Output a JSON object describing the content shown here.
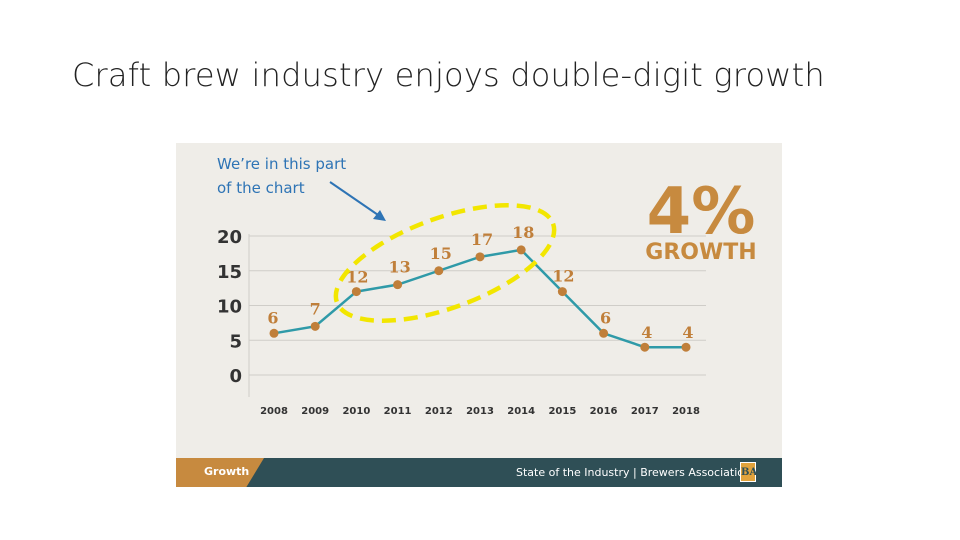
{
  "slide": {
    "title": "Craft brew industry enjoys double-digit growth",
    "annotation_line1": "We’re in this part",
    "annotation_line2": "of the chart"
  },
  "badge": {
    "big": "4%",
    "label": "GROWTH"
  },
  "footer": {
    "left_label": "Growth",
    "right_label": "State of the Industry | Brewers Association",
    "logo_text": "BA"
  },
  "colors": {
    "line": "#2f9aa8",
    "marker": "#c07f3a",
    "value_label": "#c07f3a",
    "badge": "#c78a3f",
    "highlight": "#f2e600",
    "annotation": "#2e74b5",
    "panel_bg": "#efede8",
    "footer_bg": "#2f4f56"
  },
  "chart_data": {
    "type": "line",
    "title": "",
    "xlabel": "",
    "ylabel": "",
    "categories": [
      "2008",
      "2009",
      "2010",
      "2011",
      "2012",
      "2013",
      "2014",
      "2015",
      "2016",
      "2017",
      "2018"
    ],
    "values": [
      6,
      7,
      12,
      13,
      15,
      17,
      18,
      12,
      6,
      4,
      4
    ],
    "ylim": [
      0,
      20
    ],
    "yticks": [
      "0",
      "5",
      "10",
      "15",
      "20"
    ],
    "grid": true,
    "legend": "none",
    "highlighted_range": [
      "2010",
      "2014"
    ]
  }
}
